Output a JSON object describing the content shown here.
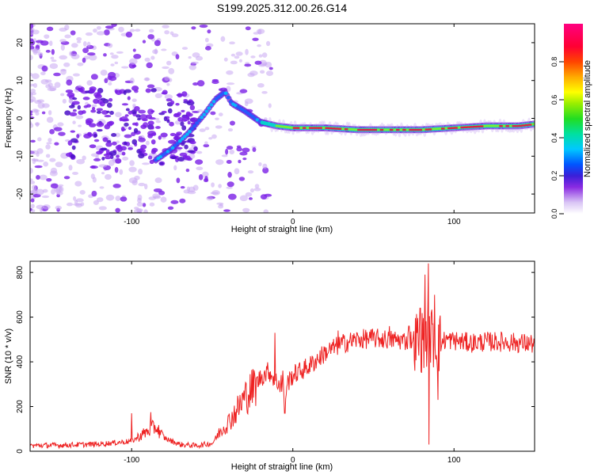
{
  "title": "S199.2025.312.00.26.G14",
  "colors": {
    "snr_line": "#ee2222",
    "spectro_purple": "#7a1fe6",
    "spectro_lavender": "#c9a8f2",
    "ridge": "#dd2244"
  },
  "chart_data": [
    {
      "type": "heatmap",
      "title": "S199.2025.312.00.26.G14",
      "xlabel": "Height of straight line (km)",
      "ylabel": "Frequency (Hz)",
      "xlim": [
        -163,
        150
      ],
      "ylim": [
        -25,
        25
      ],
      "x_ticks": [
        -100,
        0,
        100
      ],
      "x_tick_labels": [
        "-100",
        "0",
        "100"
      ],
      "y_ticks": [
        -20,
        -10,
        0,
        10,
        20
      ],
      "y_tick_labels": [
        "-20",
        "-10",
        "0",
        "10",
        "20"
      ],
      "ridge": {
        "description_points_x": [
          -85,
          -75,
          -65,
          -55,
          -48,
          -42,
          -38,
          -30,
          -20,
          -10,
          0,
          20,
          40,
          60,
          80,
          100,
          120,
          140,
          150
        ],
        "description_points_y": [
          -11,
          -8,
          -4,
          1,
          5,
          7,
          4,
          2,
          -1,
          -2,
          -2.5,
          -2.5,
          -3,
          -3,
          -3,
          -2.5,
          -2,
          -2,
          -1.5
        ]
      },
      "colorbar": {
        "label": "Normalized spectral amplitude",
        "range": [
          0,
          1
        ],
        "ticks": [
          0.0,
          0.2,
          0.4,
          0.6,
          0.8
        ],
        "tick_labels": [
          "0.0",
          "0.2",
          "0.4",
          "0.6",
          "0.8"
        ]
      }
    },
    {
      "type": "line",
      "xlabel": "Height of straight line (km)",
      "ylabel": "SNR (10 * v/v)",
      "xlim": [
        -163,
        150
      ],
      "ylim": [
        0,
        850
      ],
      "x_ticks": [
        -100,
        0,
        100
      ],
      "x_tick_labels": [
        "-100",
        "0",
        "100"
      ],
      "y_ticks": [
        0,
        200,
        400,
        600,
        800
      ],
      "y_tick_labels": [
        "0",
        "200",
        "400",
        "600",
        "800"
      ],
      "series": [
        {
          "name": "SNR",
          "envelope_x": [
            -163,
            -140,
            -120,
            -100,
            -90,
            -85,
            -80,
            -70,
            -60,
            -50,
            -45,
            -40,
            -35,
            -30,
            -25,
            -20,
            -15,
            -10,
            -5,
            0,
            5,
            10,
            15,
            20,
            30,
            40,
            50,
            60,
            70,
            75,
            80,
            85,
            90,
            95,
            100,
            110,
            120,
            130,
            140,
            150
          ],
          "envelope_y": [
            25,
            28,
            32,
            45,
            90,
            110,
            60,
            30,
            25,
            35,
            90,
            130,
            180,
            240,
            280,
            330,
            360,
            310,
            290,
            340,
            360,
            380,
            410,
            440,
            480,
            500,
            505,
            500,
            495,
            500,
            490,
            520,
            480,
            500,
            495,
            485,
            490,
            490,
            485,
            480
          ],
          "spikes": [
            {
              "x": -100,
              "y": 170
            },
            {
              "x": -88,
              "y": 175
            },
            {
              "x": -45,
              "y": 90
            },
            {
              "x": -11,
              "y": 530
            },
            {
              "x": -5,
              "y": 170
            },
            {
              "x": 28,
              "y": 540
            },
            {
              "x": 60,
              "y": 560
            },
            {
              "x": 72,
              "y": 560
            },
            {
              "x": 79,
              "y": 640
            },
            {
              "x": 82,
              "y": 790
            },
            {
              "x": 84,
              "y": 840
            },
            {
              "x": 84.5,
              "y": 30
            },
            {
              "x": 88,
              "y": 700
            },
            {
              "x": 90,
              "y": 230
            }
          ]
        }
      ]
    }
  ]
}
